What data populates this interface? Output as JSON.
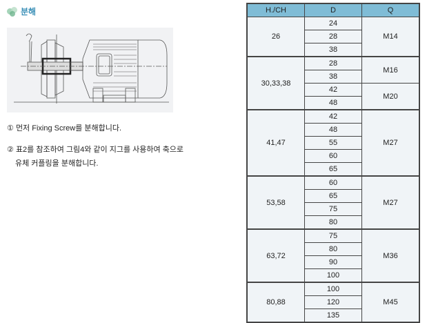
{
  "heading": {
    "title": "분해",
    "icon": "leaf-icon"
  },
  "steps": [
    {
      "marker": "①",
      "lines": [
        "먼저 Fixing Screw를 분해합니다."
      ]
    },
    {
      "marker": "②",
      "lines": [
        "표2를 참조하여 그림4와 같이 지그를 사용하여 축으로",
        "유체 커플링을 분해합니다."
      ]
    }
  ],
  "table": {
    "headers": [
      "H./CH",
      "D",
      "Q"
    ],
    "groups": [
      {
        "hch": "26",
        "d": [
          "24",
          "28",
          "38"
        ],
        "q": [
          {
            "label": "M14",
            "span": 3
          }
        ]
      },
      {
        "hch": "30,33,38",
        "d": [
          "28",
          "38",
          "42",
          "48"
        ],
        "q": [
          {
            "label": "M16",
            "span": 2
          },
          {
            "label": "M20",
            "span": 2
          }
        ]
      },
      {
        "hch": "41,47",
        "d": [
          "42",
          "48",
          "55",
          "60",
          "65"
        ],
        "q": [
          {
            "label": "M27",
            "span": 5
          }
        ]
      },
      {
        "hch": "53,58",
        "d": [
          "60",
          "65",
          "75",
          "80"
        ],
        "q": [
          {
            "label": "M27",
            "span": 4
          }
        ]
      },
      {
        "hch": "63,72",
        "d": [
          "75",
          "80",
          "90",
          "100"
        ],
        "q": [
          {
            "label": "M36",
            "span": 4
          }
        ]
      },
      {
        "hch": "80,88",
        "d": [
          "100",
          "120",
          "135"
        ],
        "q": [
          {
            "label": "M45",
            "span": 3
          }
        ]
      }
    ]
  }
}
